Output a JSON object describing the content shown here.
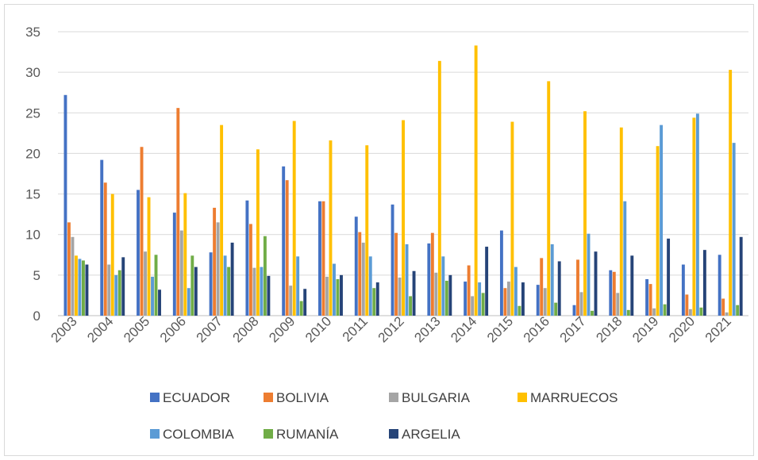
{
  "chart_data": {
    "type": "bar",
    "title": "",
    "xlabel": "",
    "ylabel": "",
    "ylim": [
      0,
      35
    ],
    "yticks": [
      0,
      5,
      10,
      15,
      20,
      25,
      30,
      35
    ],
    "grid": true,
    "legend_position": "bottom",
    "categories": [
      "2003",
      "2004",
      "2005",
      "2006",
      "2007",
      "2008",
      "2009",
      "2010",
      "2011",
      "2012",
      "2013",
      "2014",
      "2015",
      "2016",
      "2017",
      "2018",
      "2019",
      "2020",
      "2021"
    ],
    "series": [
      {
        "name": "ECUADOR",
        "color": "#4472c4",
        "values": [
          27.2,
          19.2,
          15.5,
          12.7,
          7.8,
          14.2,
          18.4,
          14.1,
          12.2,
          13.7,
          8.9,
          4.2,
          10.5,
          3.8,
          1.3,
          5.6,
          4.5,
          6.3,
          7.5
        ]
      },
      {
        "name": "BOLIVIA",
        "color": "#ed7d31",
        "values": [
          11.5,
          16.4,
          20.8,
          25.6,
          13.3,
          11.3,
          16.7,
          14.1,
          10.3,
          10.2,
          10.2,
          6.2,
          3.4,
          7.1,
          6.9,
          5.4,
          3.9,
          2.6,
          2.1
        ]
      },
      {
        "name": "BULGARIA",
        "color": "#a5a5a5",
        "values": [
          9.7,
          6.3,
          7.9,
          10.5,
          11.5,
          5.9,
          3.7,
          4.8,
          9.0,
          4.7,
          5.3,
          2.4,
          4.2,
          3.4,
          2.9,
          2.8,
          0.9,
          0.8,
          0.4
        ]
      },
      {
        "name": "MARRUECOS",
        "color": "#ffc000",
        "values": [
          7.4,
          15.0,
          14.6,
          15.1,
          23.5,
          20.5,
          24.0,
          21.6,
          21.0,
          24.1,
          31.4,
          33.3,
          23.9,
          28.9,
          25.2,
          23.2,
          20.9,
          24.4,
          30.3
        ]
      },
      {
        "name": "COLOMBIA",
        "color": "#5b9bd5",
        "values": [
          7.0,
          5.0,
          4.8,
          3.4,
          7.4,
          6.0,
          7.3,
          6.4,
          7.3,
          8.8,
          7.3,
          4.1,
          6.0,
          8.8,
          10.1,
          14.1,
          23.5,
          24.9,
          21.3
        ]
      },
      {
        "name": "RUMANÍA",
        "color": "#70ad47",
        "values": [
          6.8,
          5.6,
          7.5,
          7.4,
          6.0,
          9.8,
          1.8,
          4.5,
          3.4,
          2.4,
          4.3,
          2.8,
          1.2,
          1.6,
          0.6,
          0.7,
          1.4,
          1.0,
          1.3
        ]
      },
      {
        "name": "ARGELIA",
        "color": "#264478",
        "values": [
          6.3,
          7.2,
          3.2,
          6.0,
          9.0,
          4.9,
          3.3,
          5.0,
          4.1,
          5.5,
          5.0,
          8.5,
          4.1,
          6.7,
          7.9,
          7.4,
          9.5,
          8.1,
          9.7
        ]
      }
    ]
  }
}
